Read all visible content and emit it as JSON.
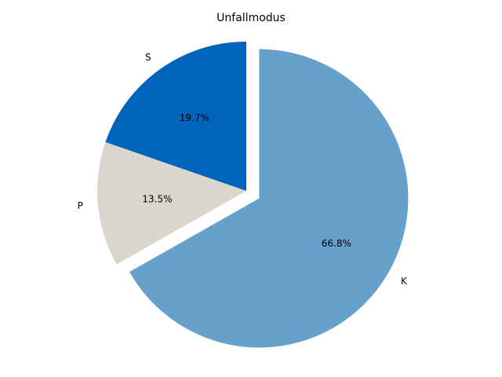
{
  "chart_data": {
    "type": "pie",
    "title": "Unfallmodus",
    "slices": [
      {
        "label": "K",
        "value": 66.8,
        "pct_label": "66.8%",
        "color": "#65a1ca",
        "exploded": true
      },
      {
        "label": "P",
        "value": 13.5,
        "pct_label": "13.5%",
        "color": "#d9d7cb",
        "exploded": false
      },
      {
        "label": "S",
        "value": 19.7,
        "pct_label": "19.7%",
        "color": "#0064bd",
        "exploded": false
      }
    ],
    "start_angle_deg": 90,
    "direction": "clockwise",
    "legend": "none"
  }
}
